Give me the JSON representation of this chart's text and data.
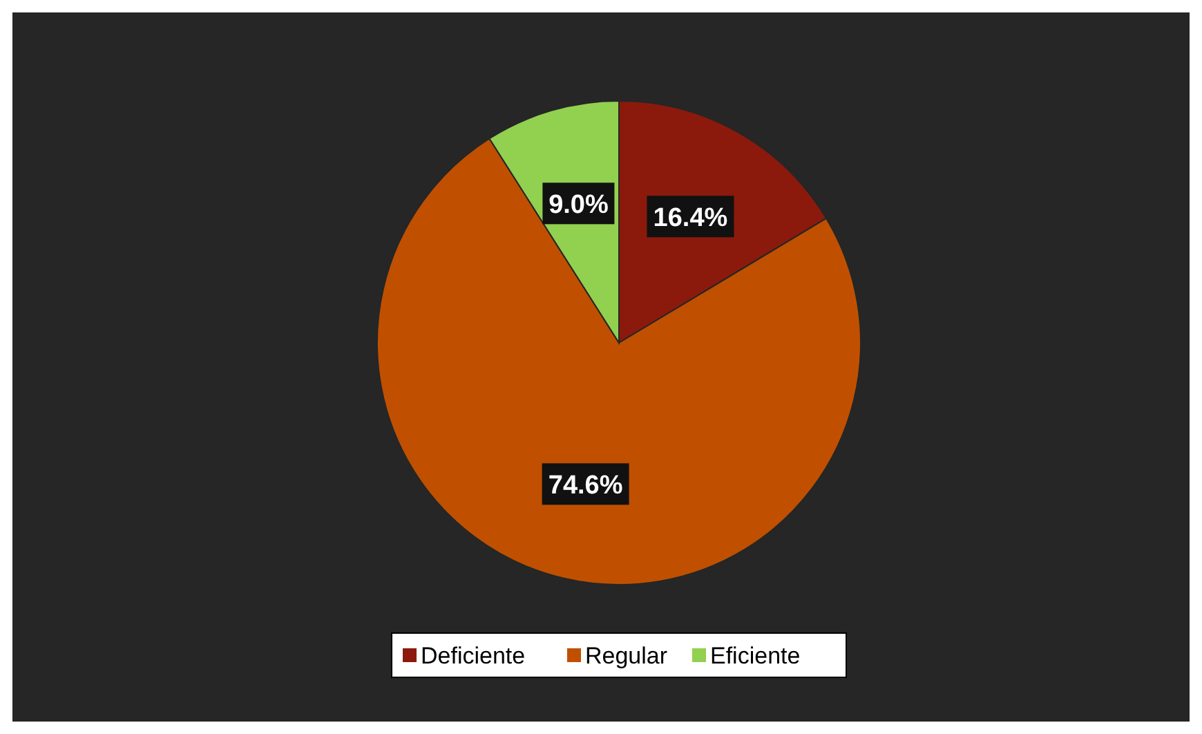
{
  "chart_data": {
    "type": "pie",
    "categories": [
      "Deficiente",
      "Regular",
      "Eficiente"
    ],
    "values": [
      16.4,
      74.6,
      9.0
    ],
    "colors": [
      "#8b1a0c",
      "#c05000",
      "#92d050"
    ],
    "value_labels": [
      "16.4%",
      "74.6%",
      "9.0%"
    ],
    "legend": "bottom"
  }
}
